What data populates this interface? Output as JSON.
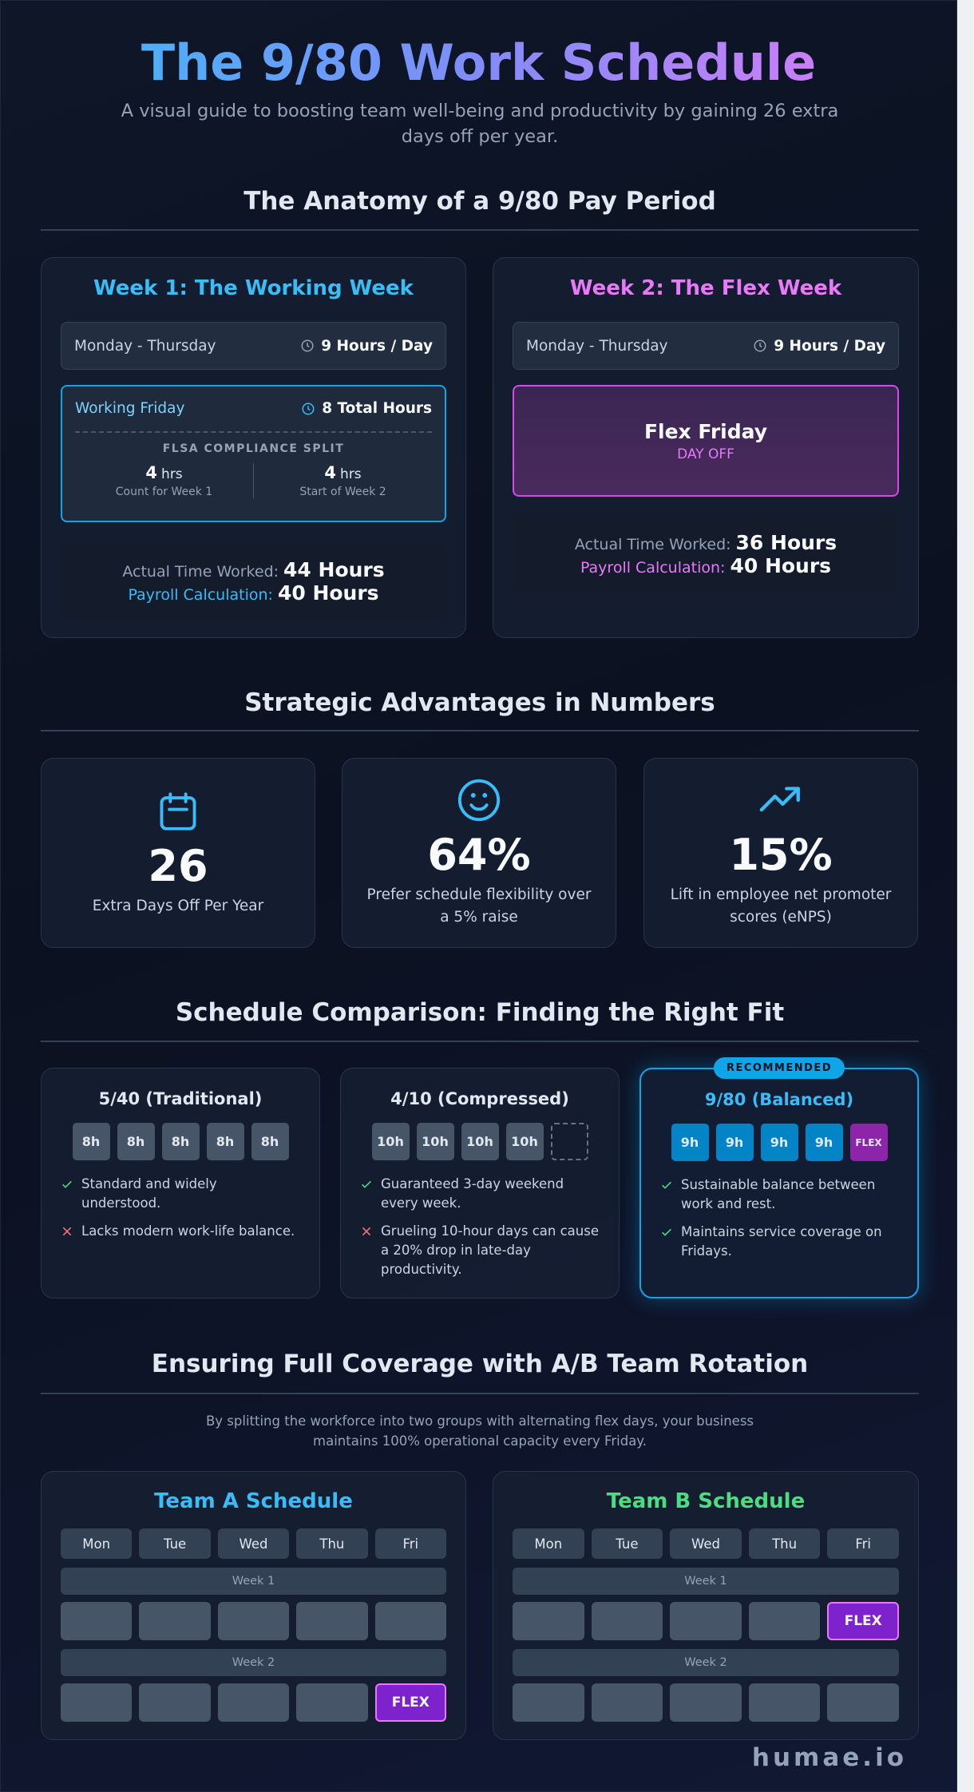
{
  "header": {
    "title": "The 9/80 Work Schedule",
    "subtitle": "A visual guide to boosting team well-being and productivity by gaining 26 extra days off per year."
  },
  "anatomy": {
    "heading": "The Anatomy of a 9/80 Pay Period",
    "week1": {
      "title": "Week 1: The Working Week",
      "days": "Monday - Thursday",
      "hours": "9 Hours / Day",
      "friday_label": "Working Friday",
      "friday_hours": "8 Total Hours",
      "split_title": "FLSA COMPLIANCE SPLIT",
      "split": [
        {
          "value": "4",
          "unit": "hrs",
          "note": "Count for Week 1"
        },
        {
          "value": "4",
          "unit": "hrs",
          "note": "Start of Week 2"
        }
      ],
      "actual_label": "Actual Time Worked:",
      "actual": "44 Hours",
      "payroll_label": "Payroll Calculation:",
      "payroll": "40 Hours"
    },
    "week2": {
      "title": "Week 2: The Flex Week",
      "days": "Monday - Thursday",
      "hours": "9 Hours / Day",
      "friday_label": "Flex Friday",
      "friday_note": "DAY OFF",
      "actual_label": "Actual Time Worked:",
      "actual": "36 Hours",
      "payroll_label": "Payroll Calculation:",
      "payroll": "40 Hours"
    }
  },
  "advantages": {
    "heading": "Strategic Advantages in Numbers",
    "stats": [
      {
        "value": "26",
        "label": "Extra Days Off Per Year"
      },
      {
        "value": "64%",
        "label": "Prefer schedule flexibility over a 5% raise"
      },
      {
        "value": "15%",
        "label": "Lift in employee net promoter scores (eNPS)"
      }
    ]
  },
  "comparison": {
    "heading": "Schedule Comparison: Finding the Right Fit",
    "plans": [
      {
        "title": "5/40 (Traditional)",
        "days": [
          "8h",
          "8h",
          "8h",
          "8h",
          "8h"
        ],
        "points": [
          {
            "text": "Standard and widely understood.",
            "positive": true
          },
          {
            "text": "Lacks modern work-life balance.",
            "positive": false
          }
        ]
      },
      {
        "title": "4/10 (Compressed)",
        "days": [
          "10h",
          "10h",
          "10h",
          "10h",
          null
        ],
        "points": [
          {
            "text": "Guaranteed 3-day weekend every week.",
            "positive": true
          },
          {
            "text": "Grueling 10-hour days can cause a 20% drop in late-day productivity.",
            "positive": false
          }
        ]
      },
      {
        "title": "9/80 (Balanced)",
        "badge": "RECOMMENDED",
        "flex_index": 4,
        "days": [
          "9h",
          "9h",
          "9h",
          "9h",
          "FLEX"
        ],
        "points": [
          {
            "text": "Sustainable balance between work and rest.",
            "positive": true
          },
          {
            "text": "Maintains service coverage on Fridays.",
            "positive": true
          }
        ]
      }
    ]
  },
  "coverage": {
    "heading": "Ensuring Full Coverage with A/B Team Rotation",
    "description": "By splitting the workforce into two groups with alternating flex days, your business maintains 100% operational capacity every Friday.",
    "teams": [
      {
        "title": "Team A Schedule",
        "color": "#38bdf8",
        "days": [
          "Mon",
          "Tue",
          "Wed",
          "Thu",
          "Fri"
        ],
        "weeks": [
          {
            "label": "Week 1",
            "cells": [
              null,
              null,
              null,
              null,
              null
            ]
          },
          {
            "label": "Week 2",
            "cells": [
              null,
              null,
              null,
              null,
              "FLEX"
            ]
          }
        ]
      },
      {
        "title": "Team B Schedule",
        "color": "#4ade80",
        "days": [
          "Mon",
          "Tue",
          "Wed",
          "Thu",
          "Fri"
        ],
        "weeks": [
          {
            "label": "Week 1",
            "cells": [
              null,
              null,
              null,
              null,
              "FLEX"
            ]
          },
          {
            "label": "Week 2",
            "cells": [
              null,
              null,
              null,
              null,
              null
            ]
          }
        ]
      }
    ]
  },
  "footer": "humae.io"
}
